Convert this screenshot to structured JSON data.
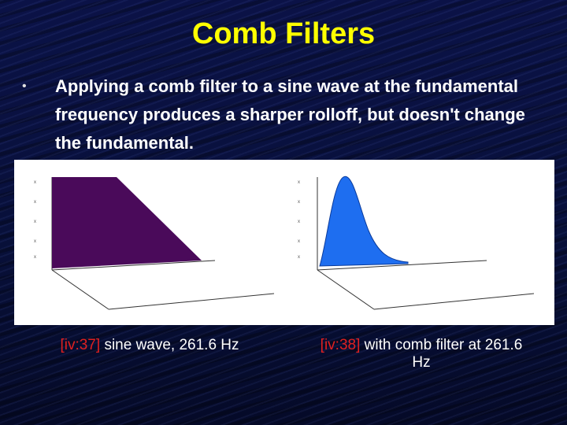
{
  "title": "Comb Filters",
  "bullet": "Applying a comb filter to a sine wave at the fundamental frequency produces a sharper rolloff, but doesn't change the fundamental.",
  "figures": [
    {
      "ref": "[iv:37]",
      "text": "sine wave, 261.6 Hz"
    },
    {
      "ref": "[iv:38]",
      "text": "with comb filter at 261.6 Hz"
    }
  ]
}
